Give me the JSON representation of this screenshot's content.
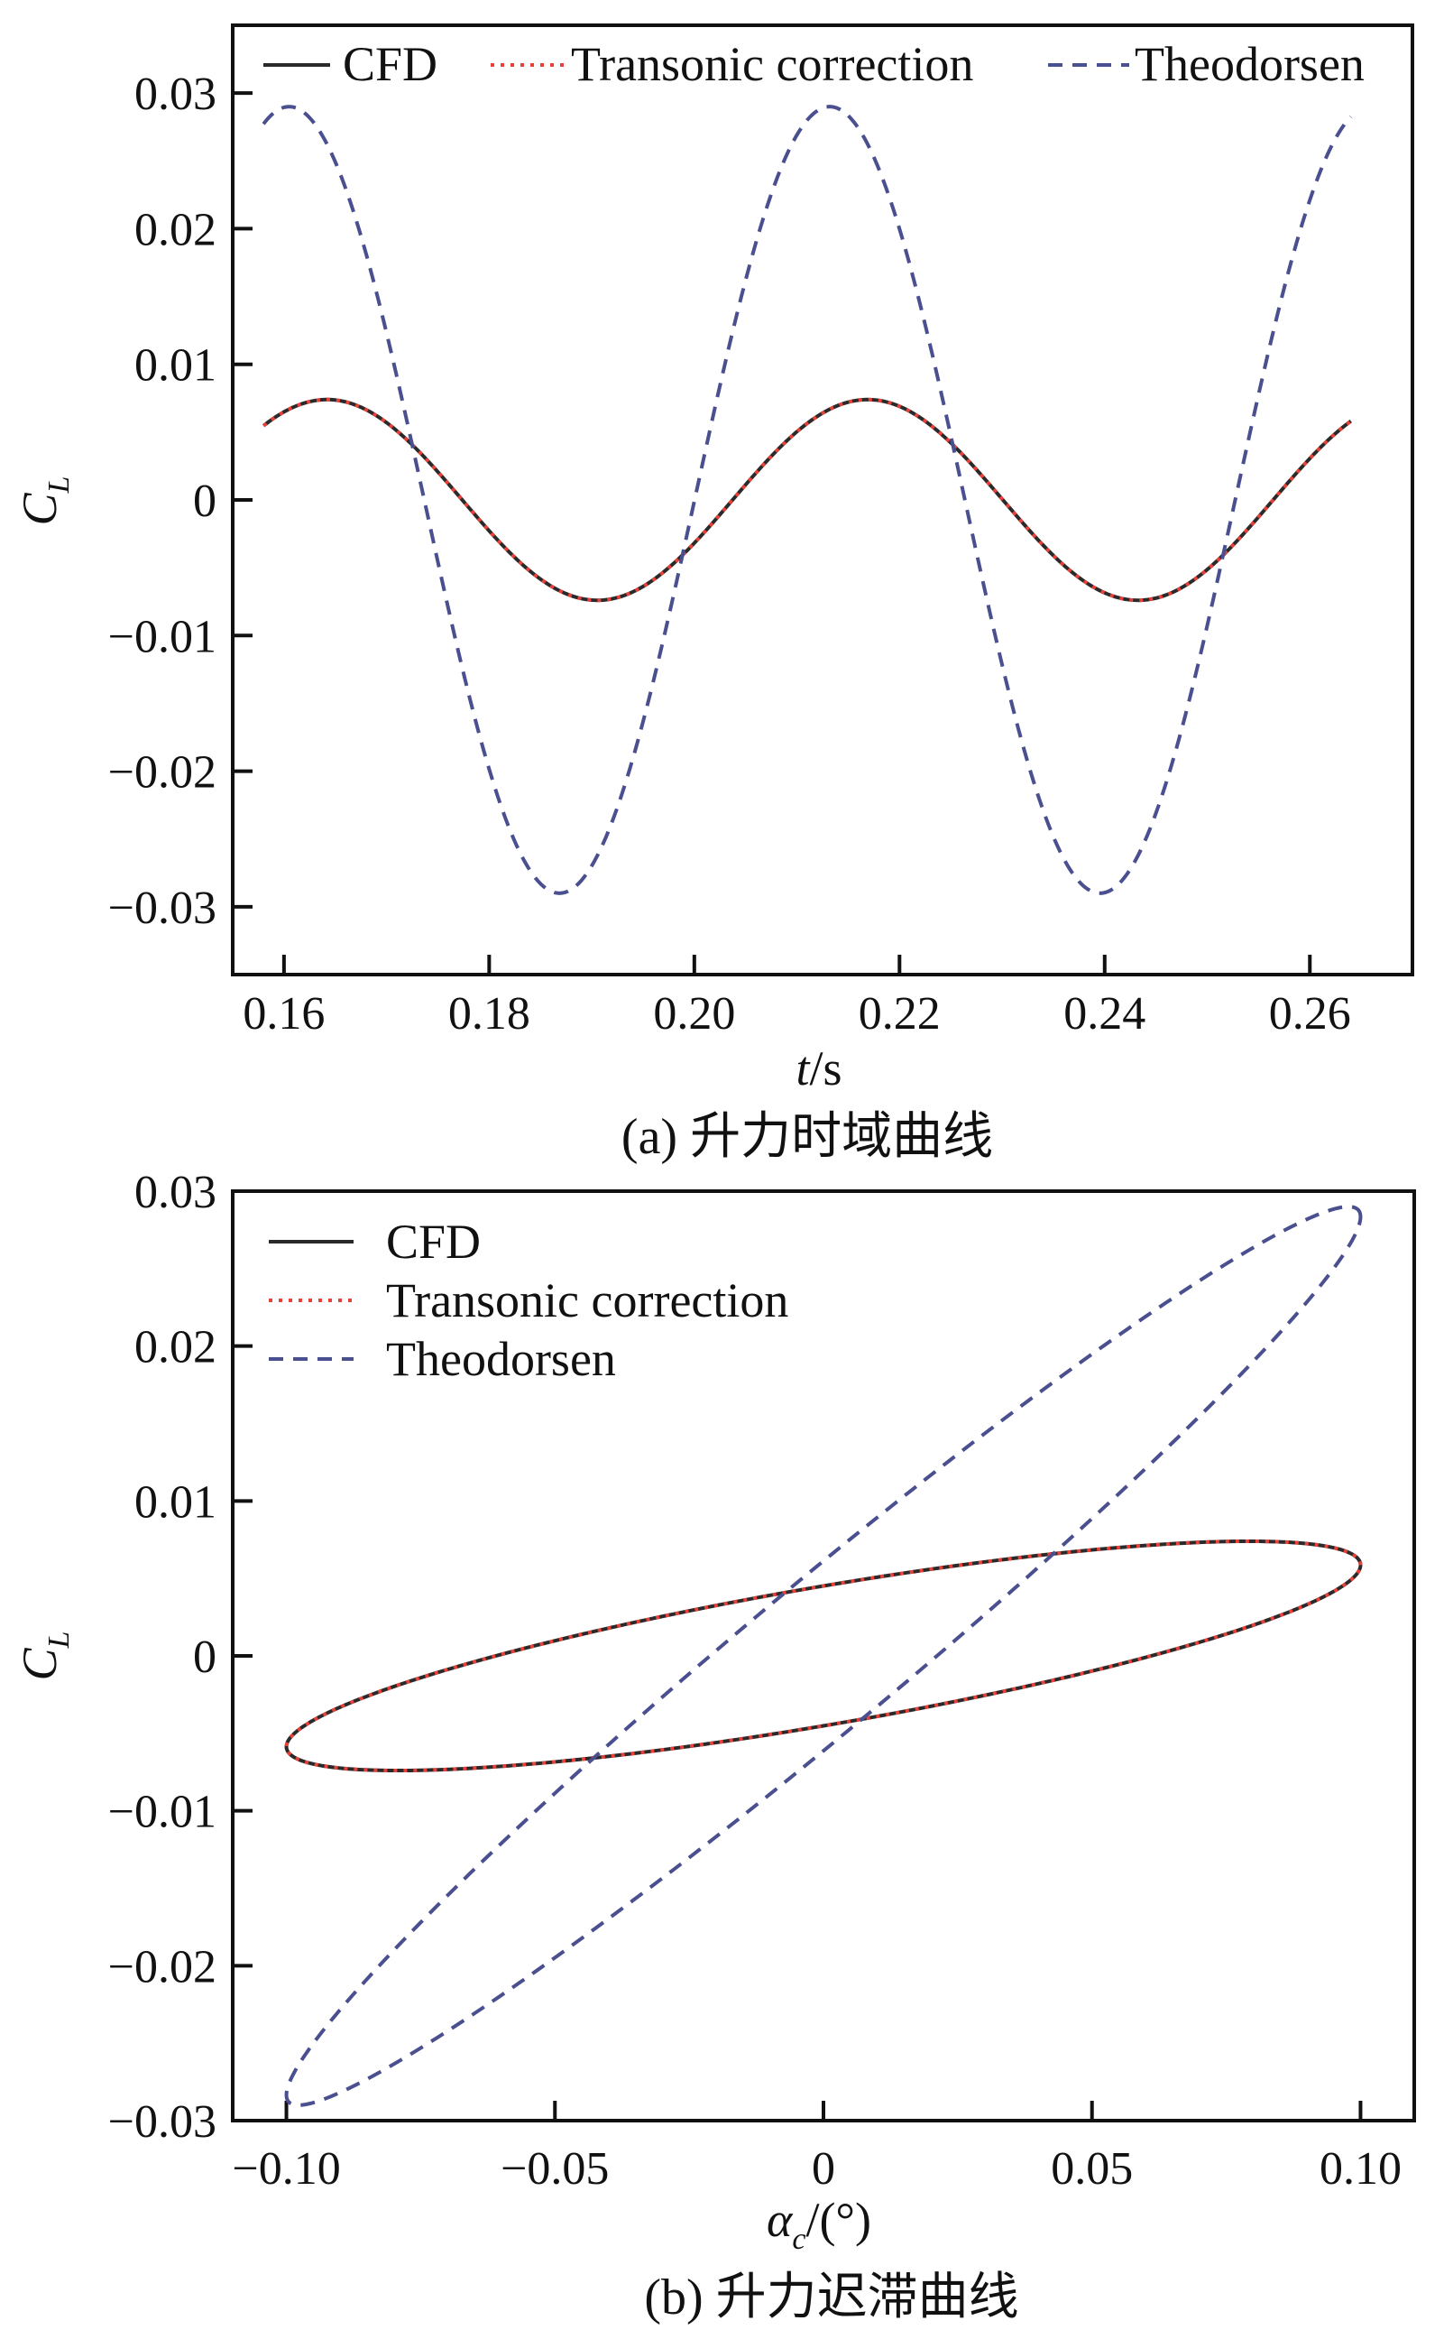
{
  "colors": {
    "cfd": "#2a2a2a",
    "transonic": "#e8413a",
    "theodorsen": "#4a4f8f",
    "axis": "#111111"
  },
  "legend": {
    "cfd": "CFD",
    "transonic": "Transonic correction",
    "theodorsen": "Theodorsen"
  },
  "chart_data": [
    {
      "type": "line",
      "panel": "a",
      "caption": "(a) 升力时域曲线",
      "xlabel_italic": "t",
      "xlabel_rest": "/s",
      "ylabel_main": "C",
      "ylabel_sub": "L",
      "xlim": [
        0.155,
        0.27
      ],
      "ylim": [
        -0.035,
        0.035
      ],
      "xticks": [
        0.16,
        0.18,
        0.2,
        0.22,
        0.24,
        0.26
      ],
      "xtick_labels": [
        "0.16",
        "0.18",
        "0.20",
        "0.22",
        "0.24",
        "0.26"
      ],
      "yticks": [
        0.03,
        0.02,
        0.01,
        0,
        -0.01,
        -0.02,
        -0.03
      ],
      "ytick_labels": [
        "0.03",
        "0.02",
        "0.01",
        "0",
        "−0.01",
        "−0.02",
        "−0.03"
      ],
      "legend_position": "top",
      "series": [
        {
          "name": "CFD",
          "style": "solid",
          "t_start": 0.158,
          "t_end": 0.264,
          "amplitude": 0.0074,
          "period": 0.0527,
          "peak_time": 0.1642
        },
        {
          "name": "Transonic correction",
          "style": "dotted",
          "t_start": 0.158,
          "t_end": 0.264,
          "amplitude": 0.0074,
          "period": 0.0527,
          "peak_time": 0.1642
        },
        {
          "name": "Theodorsen",
          "style": "dashed",
          "t_start": 0.158,
          "t_end": 0.264,
          "amplitude": 0.029,
          "period": 0.0527,
          "peak_time": 0.1605
        }
      ]
    },
    {
      "type": "line",
      "panel": "b",
      "caption": "(b) 升力迟滞曲线",
      "xlabel_main": "α",
      "xlabel_sub": "c",
      "xlabel_rest": "/(°)",
      "ylabel_main": "C",
      "ylabel_sub": "L",
      "xlim": [
        -0.11,
        0.11
      ],
      "ylim": [
        -0.03,
        0.03
      ],
      "xticks": [
        -0.1,
        -0.05,
        0,
        0.05,
        0.1
      ],
      "xtick_labels": [
        "−0.10",
        "−0.05",
        "0",
        "0.05",
        "0.10"
      ],
      "yticks": [
        0.03,
        0.02,
        0.01,
        0,
        -0.01,
        -0.02,
        -0.03
      ],
      "ytick_labels": [
        "0.03",
        "0.02",
        "0.01",
        "0",
        "−0.01",
        "−0.02",
        "−0.03"
      ],
      "legend_position": "top-left",
      "alpha_amplitude": 0.1,
      "series": [
        {
          "name": "CFD",
          "style": "solid",
          "cl_amplitude": 0.0074,
          "phase_deg": 37.6
        },
        {
          "name": "Transonic correction",
          "style": "dotted",
          "cl_amplitude": 0.0074,
          "phase_deg": 37.6
        },
        {
          "name": "Theodorsen",
          "style": "dashed",
          "cl_amplitude": 0.029,
          "phase_deg": 12.2
        }
      ]
    }
  ]
}
